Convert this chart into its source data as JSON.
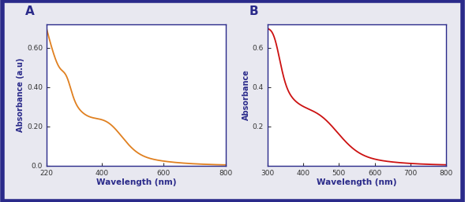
{
  "panel_A": {
    "label": "A",
    "line_color": "#E08020",
    "xmin": 220,
    "xmax": 800,
    "ymin": 0.0,
    "ymax": 0.72,
    "xticks": [
      220,
      400,
      600,
      800
    ],
    "ytick_vals": [
      0.0,
      0.2,
      0.4,
      0.6
    ],
    "ytick_labels": [
      "0.0",
      "0.20",
      "0.40",
      "0.60"
    ],
    "xlabel": "Wavelength (nm)",
    "ylabel": "Absorbance (a.u)"
  },
  "panel_B": {
    "label": "B",
    "line_color": "#CC1111",
    "xmin": 300,
    "xmax": 800,
    "ymin": 0.0,
    "ymax": 0.72,
    "xticks": [
      300,
      400,
      500,
      600,
      700,
      800
    ],
    "ytick_vals": [
      0.2,
      0.4,
      0.6
    ],
    "ytick_labels": [
      "0.2",
      "0.4",
      "0.6"
    ],
    "xlabel": "Wavelength (nm)",
    "ylabel": "Absorbance"
  },
  "plot_bg": "#ffffff",
  "fig_bg": "#e8e8f0",
  "border_color": "#2a2a8a",
  "label_color": "#2a2a8a",
  "tick_color": "#333333",
  "axis_label_color": "#2a2a8a"
}
